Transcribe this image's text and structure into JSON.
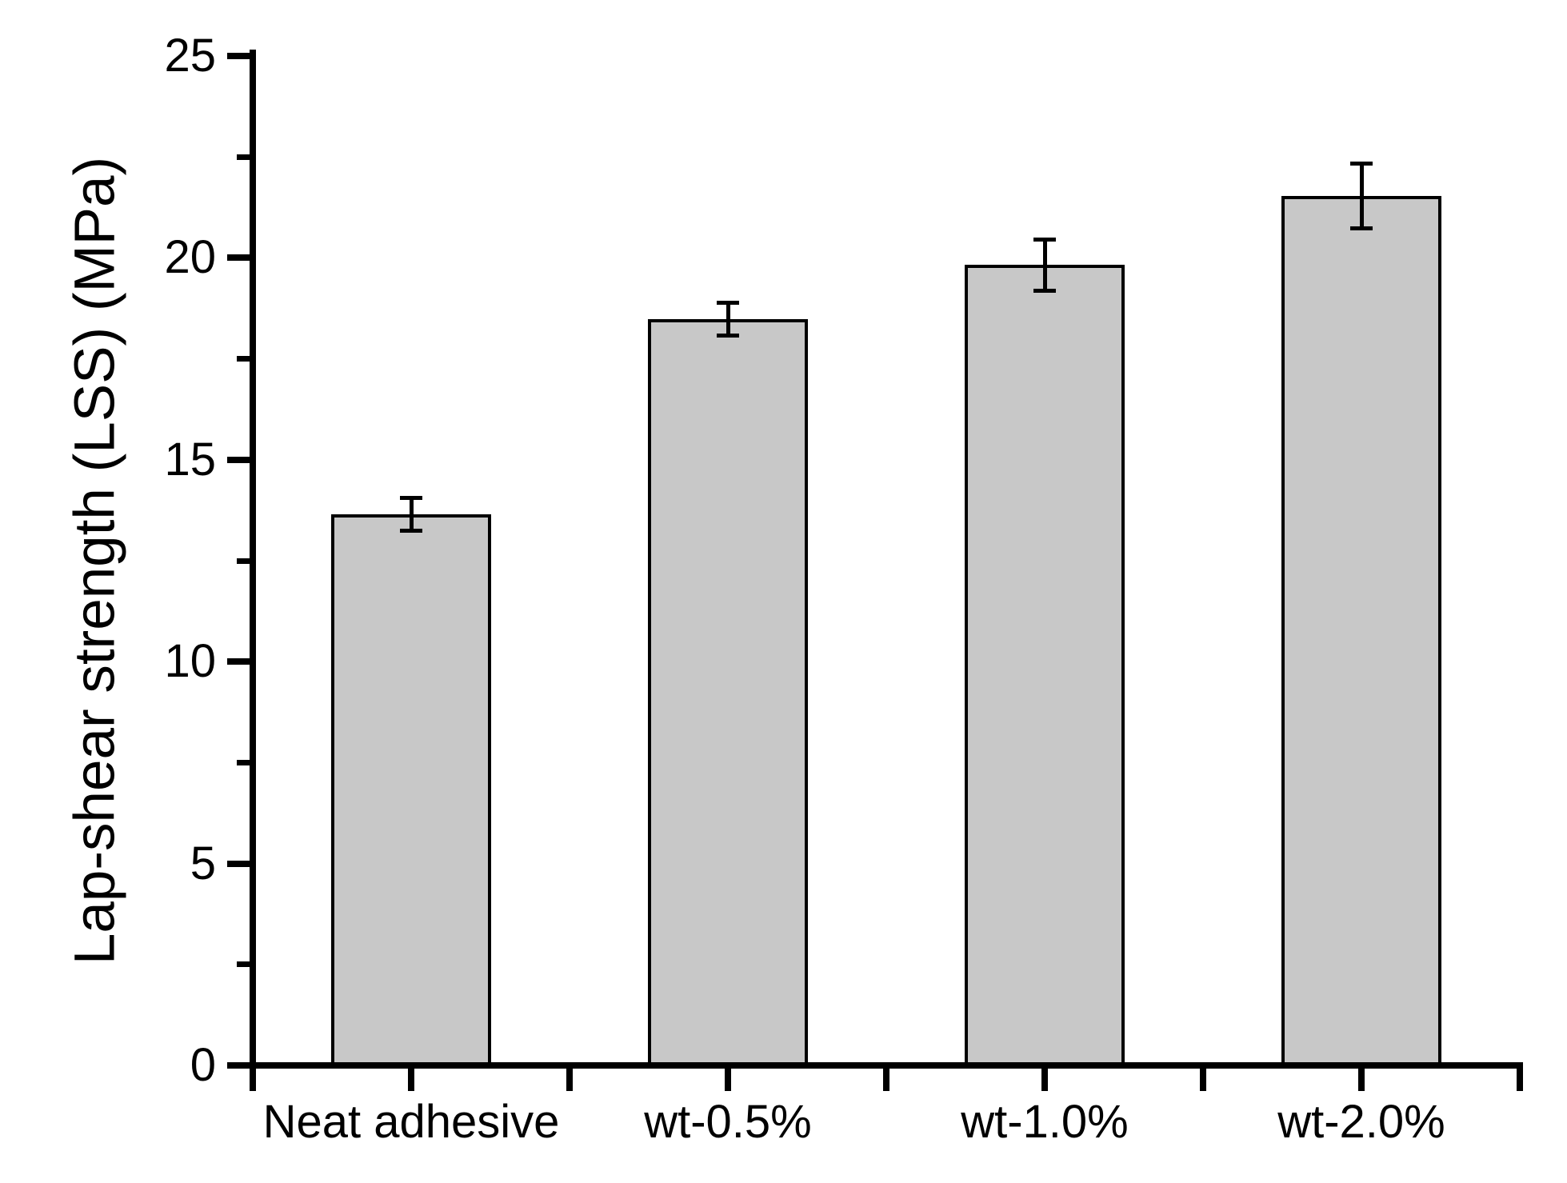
{
  "chart_data": {
    "type": "bar",
    "title": "",
    "ylabel": "Lap-shear strength (LSS) (MPa)",
    "xlabel": "",
    "categories": [
      "Neat adhesive",
      "wt-0.5%",
      "wt-1.0%",
      "wt-2.0%"
    ],
    "values": [
      13.65,
      18.48,
      19.82,
      21.53
    ],
    "errors": [
      0.4,
      0.4,
      0.63,
      0.8
    ],
    "ylim": [
      0,
      25
    ],
    "y_major_step": 5,
    "y_minor_step": 2.5,
    "y_tick_labels": [
      "0",
      "5",
      "10",
      "15",
      "20",
      "25"
    ],
    "grid": false,
    "legend": false,
    "bar_fill": "#c8c8c8",
    "bar_stroke": "#000000",
    "axis_color": "#000000",
    "background": "#ffffff"
  }
}
